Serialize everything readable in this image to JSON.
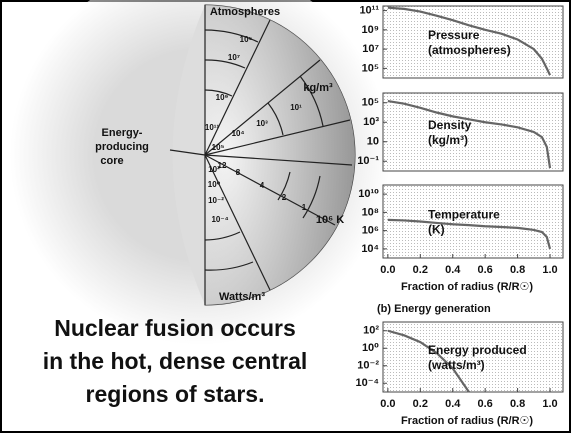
{
  "diagram": {
    "labels": {
      "atmospheres": "Atmospheres",
      "density_unit": "kg/m³",
      "core": [
        "Energy-",
        "producing",
        "core"
      ],
      "temperature_unit": "10⁶ K",
      "energy_unit": "Watts/m³"
    },
    "pressure_scale": [
      "10⁵",
      "10⁷",
      "10⁹",
      "10¹¹"
    ],
    "density_scale": [
      "10⁵",
      "10⁴",
      "10³",
      "10¹"
    ],
    "temperature_scale": [
      "12",
      "8",
      "4",
      "2",
      "1"
    ],
    "energy_scale": [
      "10²",
      "10⁰",
      "10⁻²",
      "10⁻⁴"
    ]
  },
  "caption": [
    "Nuclear fusion occurs",
    "in the hot, dense central",
    "regions of stars."
  ],
  "chart_data": [
    {
      "type": "line",
      "log_y": true,
      "color": "#666666",
      "annotations": [
        "Pressure",
        "(atmospheres)"
      ],
      "x": [
        0,
        0.1,
        0.2,
        0.3,
        0.4,
        0.5,
        0.6,
        0.7,
        0.8,
        0.9,
        0.95,
        0.98,
        1.0
      ],
      "values": [
        200000000000,
        150000000000,
        80000000000,
        30000000000,
        10000000000,
        3000000000,
        1000000000,
        400000000,
        100000000,
        10000000,
        1000000,
        100000,
        20000
      ],
      "xlim": [
        -0.03,
        1.08
      ],
      "ylim": [
        10000,
        300000000000
      ],
      "yticks": [
        {
          "value": 100000,
          "label": "10⁵"
        },
        {
          "value": 10000000,
          "label": "10⁷"
        },
        {
          "value": 1000000000,
          "label": "10⁹"
        },
        {
          "value": 100000000000,
          "label": "10¹¹"
        }
      ]
    },
    {
      "type": "line",
      "log_y": true,
      "color": "#666666",
      "annotations": [
        "Density",
        "(kg/m³)"
      ],
      "x": [
        0,
        0.1,
        0.2,
        0.3,
        0.4,
        0.5,
        0.6,
        0.7,
        0.8,
        0.9,
        0.95,
        0.98,
        1.0
      ],
      "values": [
        150000,
        80000,
        30000,
        10000,
        4000,
        2000,
        1000,
        600,
        300,
        100,
        30,
        3,
        0.02
      ],
      "xlim": [
        -0.03,
        1.08
      ],
      "ylim": [
        0.01,
        1000000
      ],
      "yticks": [
        {
          "value": 100000,
          "label": "10⁵"
        },
        {
          "value": 1000,
          "label": "10³"
        },
        10,
        {
          "value": 0.1,
          "label": "10⁻¹"
        }
      ]
    },
    {
      "type": "line",
      "log_y": true,
      "color": "#666666",
      "annotations": [
        "Temperature",
        "(K)"
      ],
      "x": [
        0,
        0.1,
        0.2,
        0.3,
        0.4,
        0.5,
        0.6,
        0.7,
        0.8,
        0.9,
        0.95,
        0.98,
        1.0
      ],
      "values": [
        15000000,
        13000000,
        10000000,
        7000000,
        5000000,
        4000000,
        3000000,
        2500000,
        2000000,
        1200000,
        700000,
        200000,
        10000
      ],
      "xlim": [
        -0.03,
        1.08
      ],
      "ylim": [
        1000,
        100000000000
      ],
      "yticks": [
        {
          "value": 10000000000,
          "label": "10¹⁰"
        },
        {
          "value": 100000000,
          "label": "10⁸"
        },
        {
          "value": 1000000,
          "label": "10⁶"
        },
        {
          "value": 10000,
          "label": "10⁴"
        }
      ],
      "xticks": [
        {
          "value": 0,
          "label": "0.0"
        },
        0.2,
        0.4,
        0.6,
        0.8,
        {
          "value": 1,
          "label": "1.0"
        }
      ],
      "xlabel": "Fraction of radius (R/R☉)"
    },
    {
      "type": "line",
      "log_y": true,
      "color": "#666666",
      "title": "(b) Energy generation",
      "annotations": [
        "Energy produced",
        "(watts/m³)"
      ],
      "x": [
        0,
        0.1,
        0.2,
        0.3,
        0.4,
        0.5
      ],
      "values": [
        100,
        30,
        5,
        0.3,
        0.005,
        1e-05
      ],
      "xlim": [
        -0.03,
        1.08
      ],
      "ylim": [
        1e-05,
        1000
      ],
      "yticks": [
        {
          "value": 100,
          "label": "10²"
        },
        {
          "value": 1,
          "label": "10⁰"
        },
        {
          "value": 0.01,
          "label": "10⁻²"
        },
        {
          "value": 0.0001,
          "label": "10⁻⁴"
        }
      ],
      "xticks": [
        {
          "value": 0,
          "label": "0.0"
        },
        0.2,
        0.4,
        0.6,
        0.8,
        {
          "value": 1,
          "label": "1.0"
        }
      ],
      "xlabel": "Fraction of radius (R/R☉)"
    }
  ]
}
